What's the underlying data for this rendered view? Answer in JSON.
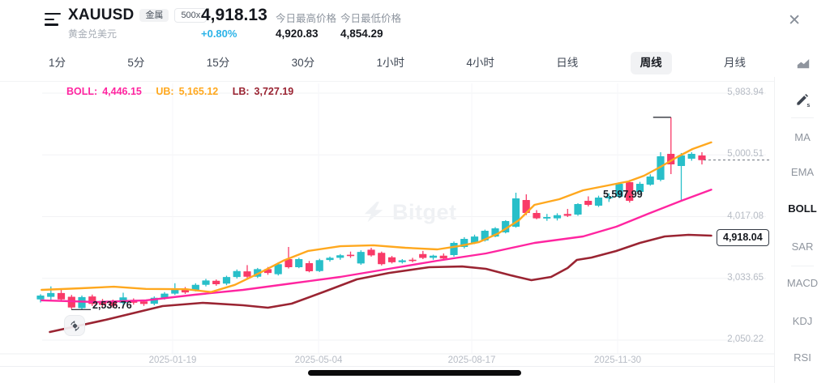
{
  "header": {
    "symbol": "XAUUSD",
    "subtitle": "黄金兑美元",
    "badges": [
      "金属",
      "500x"
    ],
    "price": "4,918.13",
    "change": "+0.80%",
    "stats": [
      {
        "label": "今日最高价格",
        "value": "4,920.83"
      },
      {
        "label": "今日最低价格",
        "value": "4,854.29"
      }
    ],
    "close_icon": "✕"
  },
  "timeframes": {
    "items": [
      "1分",
      "5分",
      "15分",
      "30分",
      "1小时",
      "4小时",
      "日线",
      "周线",
      "月线"
    ],
    "selected": "周线"
  },
  "legend": {
    "boll_label": "BOLL:",
    "boll_value": "4,446.15",
    "ub_label": "UB:",
    "ub_value": "5,165.12",
    "lb_label": "LB:",
    "lb_value": "3,727.19"
  },
  "sidebar": {
    "items": [
      "MA",
      "EMA",
      "BOLL",
      "SAR",
      "MACD",
      "KDJ",
      "RSI"
    ],
    "selected": "BOLL"
  },
  "watermark": "Bitget",
  "price_flag": "4,918.04",
  "annotations": {
    "high": "5,597.99",
    "low": "2,536.76"
  },
  "colors": {
    "up": "#28BFC9",
    "down": "#F93A68",
    "boll_mid": "#FF25A0",
    "boll_upper": "#FFA81E",
    "boll_lower": "#9A2432",
    "change_up": "#2BB3E8"
  },
  "chart_data": {
    "type": "candlestick",
    "symbol": "XAUUSD",
    "interval": "周线",
    "price_axis": {
      "top": 5983.94,
      "bottom": 2050.22
    },
    "y_ticks": [
      "5,983.94",
      "5,000.51",
      "4,017.08",
      "3,033.65",
      "2,050.22"
    ],
    "x_ticks": [
      "2025-01-19",
      "2025-05-04",
      "2025-08-17",
      "2025-11-30"
    ],
    "last_price": 4918.04,
    "high_point": 5597.99,
    "low_point": 2536.76,
    "candles": [
      [
        2700,
        2780,
        2650,
        2760
      ],
      [
        2740,
        2905,
        2690,
        2800
      ],
      [
        2800,
        2860,
        2670,
        2700
      ],
      [
        2740,
        2770,
        2545,
        2570
      ],
      [
        2560,
        2760,
        2536.76,
        2735
      ],
      [
        2745,
        2775,
        2595,
        2625
      ],
      [
        2675,
        2705,
        2580,
        2610
      ],
      [
        2665,
        2695,
        2565,
        2595
      ],
      [
        2640,
        2805,
        2615,
        2730
      ],
      [
        2690,
        2715,
        2615,
        2645
      ],
      [
        2665,
        2690,
        2595,
        2625
      ],
      [
        2630,
        2745,
        2605,
        2725
      ],
      [
        2725,
        2815,
        2695,
        2790
      ],
      [
        2790,
        2955,
        2770,
        2865
      ],
      [
        2865,
        2895,
        2785,
        2810
      ],
      [
        2845,
        2955,
        2825,
        2930
      ],
      [
        2930,
        3025,
        2905,
        3000
      ],
      [
        2995,
        3015,
        2915,
        2940
      ],
      [
        2950,
        3075,
        2925,
        3055
      ],
      [
        3055,
        3175,
        3030,
        3150
      ],
      [
        3145,
        3245,
        3035,
        3060
      ],
      [
        3060,
        3200,
        3040,
        3180
      ],
      [
        3180,
        3215,
        3090,
        3120
      ],
      [
        3100,
        3290,
        3080,
        3260
      ],
      [
        3340,
        3533,
        3190,
        3211
      ],
      [
        3211,
        3360,
        3195,
        3340
      ],
      [
        3275,
        3310,
        3130,
        3146
      ],
      [
        3150,
        3345,
        3135,
        3325
      ],
      [
        3325,
        3380,
        3300,
        3360
      ],
      [
        3360,
        3420,
        3330,
        3400
      ],
      [
        3410,
        3460,
        3360,
        3395
      ],
      [
        3270,
        3480,
        3250,
        3455
      ],
      [
        3490,
        3520,
        3380,
        3400
      ],
      [
        3440,
        3460,
        3240,
        3260
      ],
      [
        3370,
        3390,
        3270,
        3290
      ],
      [
        3290,
        3340,
        3270,
        3320
      ],
      [
        3330,
        3360,
        3290,
        3310
      ],
      [
        3420,
        3470,
        3340,
        3360
      ],
      [
        3360,
        3410,
        3330,
        3395
      ],
      [
        3395,
        3430,
        3320,
        3350
      ],
      [
        3404,
        3620,
        3380,
        3598
      ],
      [
        3533,
        3690,
        3510,
        3662
      ],
      [
        3598,
        3730,
        3580,
        3700
      ],
      [
        3636,
        3810,
        3620,
        3791
      ],
      [
        3700,
        3850,
        3690,
        3830
      ],
      [
        3765,
        3960,
        3750,
        3946
      ],
      [
        3856,
        4397,
        3840,
        4307
      ],
      [
        4281,
        4372,
        4040,
        4075
      ],
      [
        4075,
        4120,
        3975,
        3990
      ],
      [
        3985,
        4060,
        3950,
        4010
      ],
      [
        3990,
        4070,
        3955,
        4040
      ],
      [
        4060,
        4140,
        4010,
        4030
      ],
      [
        4049,
        4230,
        4030,
        4217
      ],
      [
        4269,
        4340,
        4180,
        4204
      ],
      [
        4191,
        4350,
        4170,
        4320
      ],
      [
        4307,
        4390,
        4250,
        4333
      ],
      [
        4333,
        4560,
        4310,
        4540
      ],
      [
        4565,
        4600,
        4240,
        4269
      ],
      [
        4411,
        4570,
        4390,
        4540
      ],
      [
        4527,
        4690,
        4510,
        4656
      ],
      [
        4604,
        5042,
        4580,
        4978
      ],
      [
        5016,
        5597.99,
        4694,
        4848
      ],
      [
        4823,
        5030,
        4281,
        4991
      ],
      [
        4939,
        5042,
        4907,
        5016
      ],
      [
        4991,
        5042,
        4848,
        4918.04
      ]
    ],
    "boll_upper_line": [
      [
        0.1,
        2850
      ],
      [
        3.9,
        2876
      ],
      [
        7.1,
        2900
      ],
      [
        10.2,
        2865
      ],
      [
        14.1,
        2860
      ],
      [
        16.5,
        2815
      ],
      [
        18.8,
        2930
      ],
      [
        21.2,
        3120
      ],
      [
        23.5,
        3315
      ],
      [
        25.9,
        3470
      ],
      [
        29,
        3545
      ],
      [
        32.2,
        3560
      ],
      [
        35.3,
        3520
      ],
      [
        38.4,
        3495
      ],
      [
        40.4,
        3545
      ],
      [
        42.4,
        3610
      ],
      [
        44.3,
        3750
      ],
      [
        46.3,
        3960
      ],
      [
        47.8,
        4204
      ],
      [
        50.2,
        4294
      ],
      [
        52.5,
        4436
      ],
      [
        54.9,
        4513
      ],
      [
        56.9,
        4578
      ],
      [
        58.4,
        4668
      ],
      [
        60,
        4810
      ],
      [
        61.6,
        4965
      ],
      [
        63.1,
        5094
      ],
      [
        64.9,
        5200
      ]
    ],
    "boll_mid_line": [
      [
        0.1,
        2683
      ],
      [
        5.5,
        2657
      ],
      [
        10.2,
        2683
      ],
      [
        14.9,
        2773
      ],
      [
        19.6,
        2850
      ],
      [
        24.3,
        2953
      ],
      [
        29,
        3056
      ],
      [
        33.7,
        3185
      ],
      [
        38.4,
        3314
      ],
      [
        43.1,
        3430
      ],
      [
        47.8,
        3598
      ],
      [
        52.5,
        3701
      ],
      [
        55.7,
        3856
      ],
      [
        58.8,
        4062
      ],
      [
        62,
        4268
      ],
      [
        64.9,
        4446
      ]
    ],
    "boll_lower_line": [
      [
        0.9,
        2179
      ],
      [
        6.3,
        2373
      ],
      [
        11.8,
        2592
      ],
      [
        15.7,
        2644
      ],
      [
        19.6,
        2605
      ],
      [
        22,
        2566
      ],
      [
        24.3,
        2631
      ],
      [
        27.5,
        2824
      ],
      [
        30.6,
        3017
      ],
      [
        33.7,
        3120
      ],
      [
        37.6,
        3211
      ],
      [
        40.8,
        3223
      ],
      [
        43.1,
        3185
      ],
      [
        45.5,
        3082
      ],
      [
        47.5,
        3004
      ],
      [
        49.4,
        3056
      ],
      [
        51,
        3198
      ],
      [
        51.9,
        3327
      ],
      [
        53.3,
        3365
      ],
      [
        55.7,
        3469
      ],
      [
        58,
        3598
      ],
      [
        60.4,
        3701
      ],
      [
        62.7,
        3727
      ],
      [
        64.9,
        3714
      ]
    ]
  }
}
